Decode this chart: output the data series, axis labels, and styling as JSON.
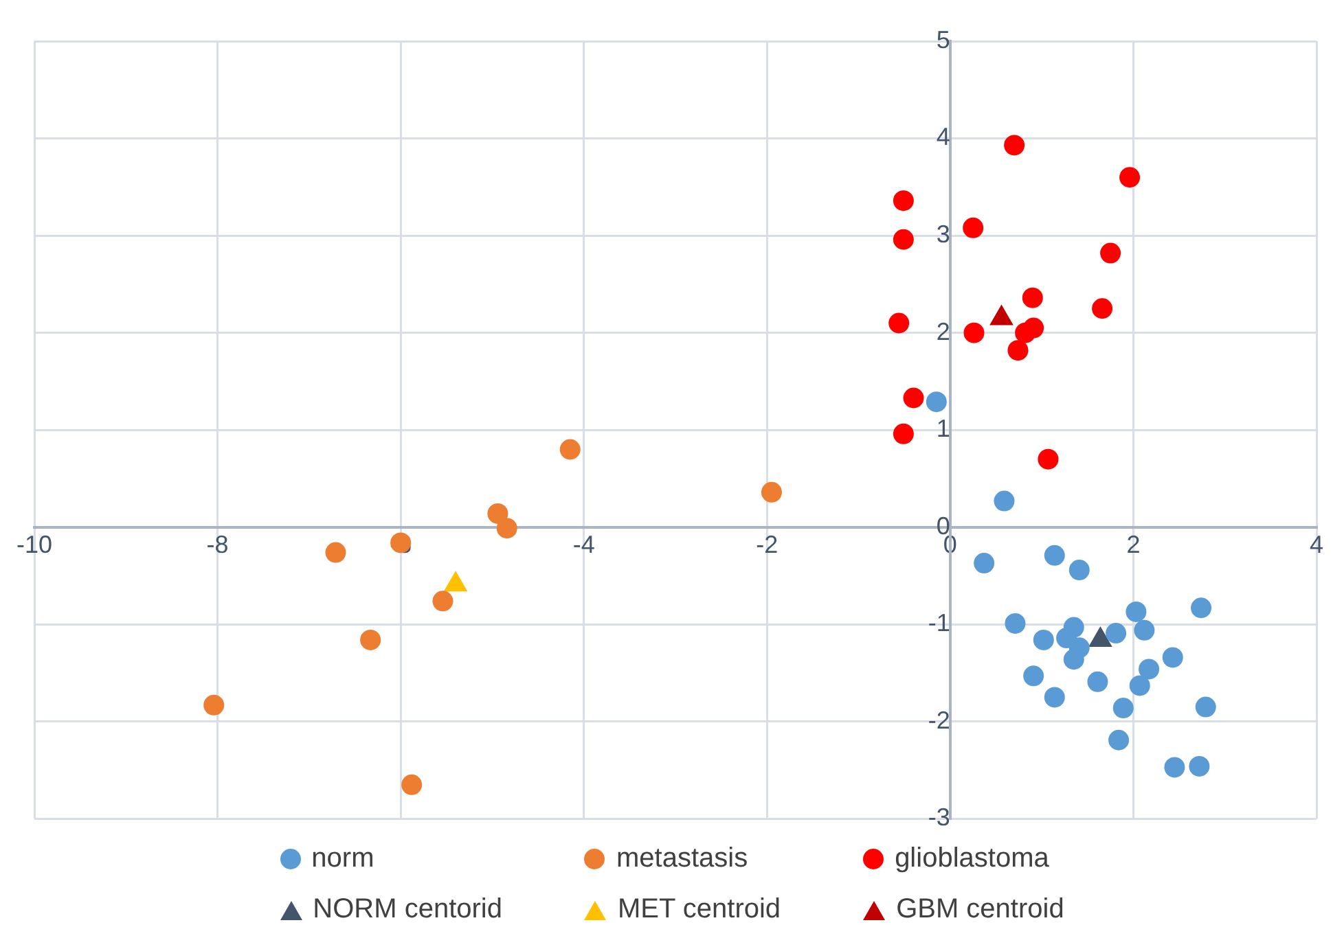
{
  "chart_data": {
    "type": "scatter",
    "xlim": [
      -10,
      4
    ],
    "xticks": [
      -10,
      -8,
      -6,
      -4,
      -2,
      0,
      2,
      4
    ],
    "ylim": [
      -3,
      5
    ],
    "yticks": [
      -3,
      -2,
      -1,
      0,
      1,
      2,
      3,
      4,
      5
    ],
    "grid": true,
    "legend": "bottom",
    "series": [
      {
        "name": "norm",
        "color": "#5b9bd5",
        "marker": "circle",
        "x": [
          -0.15,
          0.59,
          0.37,
          1.14,
          1.41,
          0.71,
          1.02,
          1.35,
          1.27,
          1.41,
          1.35,
          0.91,
          1.14,
          1.81,
          2.03,
          2.12,
          2.43,
          2.17,
          2.07,
          1.61,
          1.89,
          2.74,
          2.79,
          1.84,
          2.45,
          2.72
        ],
        "values": [
          1.29,
          0.27,
          -0.37,
          -0.29,
          -0.44,
          -0.99,
          -1.16,
          -1.03,
          -1.14,
          -1.24,
          -1.36,
          -1.53,
          -1.75,
          -1.09,
          -0.87,
          -1.06,
          -1.34,
          -1.46,
          -1.63,
          -1.59,
          -1.86,
          -0.83,
          -1.85,
          -2.19,
          -2.47,
          -2.46
        ]
      },
      {
        "name": "metastasis",
        "color": "#ed7d31",
        "marker": "circle",
        "x": [
          -6.71,
          -6.0,
          -4.94,
          -4.84,
          -4.15,
          -1.95,
          -6.33,
          -5.54,
          -8.04,
          -5.88
        ],
        "values": [
          -0.26,
          -0.16,
          0.14,
          -0.01,
          0.8,
          0.36,
          -1.16,
          -0.76,
          -1.83,
          -2.65
        ]
      },
      {
        "name": "glioblastoma",
        "color": "#ff0000",
        "marker": "circle",
        "x": [
          0.7,
          1.96,
          -0.51,
          0.25,
          -0.51,
          1.75,
          0.9,
          1.66,
          -0.56,
          0.26,
          0.82,
          0.91,
          0.74,
          -0.4,
          -0.51,
          1.07
        ],
        "values": [
          3.93,
          3.6,
          3.36,
          3.08,
          2.96,
          2.82,
          2.36,
          2.25,
          2.1,
          2.0,
          2.0,
          2.05,
          1.82,
          1.33,
          0.96,
          0.7
        ]
      },
      {
        "name": "NORM centorid",
        "color": "#44546a",
        "marker": "triangle",
        "x": [
          1.64
        ],
        "values": [
          -1.16
        ]
      },
      {
        "name": "MET centroid",
        "color": "#ffc000",
        "marker": "triangle",
        "x": [
          -5.4
        ],
        "values": [
          -0.59
        ]
      },
      {
        "name": "GBM centroid",
        "color": "#c00000",
        "marker": "triangle",
        "x": [
          0.56
        ],
        "values": [
          2.15
        ]
      }
    ]
  }
}
